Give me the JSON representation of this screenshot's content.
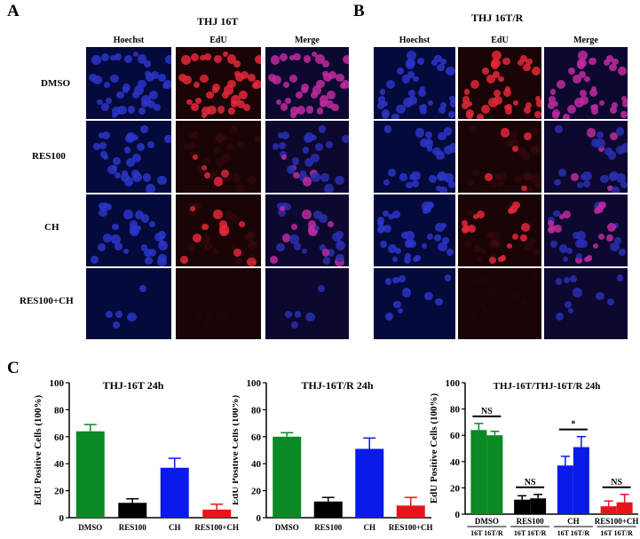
{
  "panels": {
    "a": {
      "letter": "A",
      "title": "THJ 16T",
      "columns": [
        "Hoechst",
        "EdU",
        "Merge"
      ],
      "rows": [
        "DMSO",
        "RES100",
        "CH",
        "RES100+CH"
      ]
    },
    "b": {
      "letter": "B",
      "title": "THJ 16T/R",
      "columns": [
        "Hoechst",
        "EdU",
        "Merge"
      ]
    },
    "c": {
      "letter": "C"
    }
  },
  "colors": {
    "green": "#0a8a24",
    "black": "#000000",
    "blue": "#0a1ae8",
    "red": "#e8141c",
    "nucleus": "#2c35c8",
    "edu": "#e4283a",
    "merge": "#c02c9c"
  },
  "chart_data": [
    {
      "type": "bar",
      "title": "THJ-16T 24h",
      "ylabel": "EdU Positive Cells (100%)",
      "ylim": [
        0,
        100
      ],
      "yticks": [
        "0",
        "20",
        "40",
        "60",
        "80",
        "100"
      ],
      "categories": [
        "DMSO",
        "RES100",
        "CH",
        "RES100+CH"
      ],
      "values": [
        64,
        11,
        37,
        6
      ],
      "errors": [
        5,
        3,
        7,
        4
      ],
      "bar_colors": [
        "green",
        "black",
        "blue",
        "red"
      ]
    },
    {
      "type": "bar",
      "title": "THJ-16T/R 24h",
      "ylabel": "EdU Positive Cells (100%)",
      "ylim": [
        0,
        100
      ],
      "yticks": [
        "0",
        "20",
        "40",
        "60",
        "80",
        "100"
      ],
      "categories": [
        "DMSO",
        "RES100",
        "CH",
        "RES100+CH"
      ],
      "values": [
        60,
        12,
        51,
        9
      ],
      "errors": [
        3,
        3,
        8,
        6
      ],
      "bar_colors": [
        "green",
        "black",
        "blue",
        "red"
      ]
    },
    {
      "type": "bar",
      "title": "THJ-16T/THJ-16T/R 24h",
      "ylabel": "EdU Positive Cells (100%)",
      "ylim": [
        0,
        100
      ],
      "yticks": [
        "0",
        "20",
        "40",
        "60",
        "80",
        "100"
      ],
      "categories": [
        "DMSO",
        "RES100",
        "CH",
        "RES100+CH"
      ],
      "group_sublabels": [
        "16T 16T/R",
        "16T 16T/R",
        "16T 16T/R",
        "16T 16T/R"
      ],
      "series": [
        {
          "name": "16T",
          "values": [
            64,
            11,
            37,
            6
          ],
          "errors": [
            5,
            3,
            7,
            4
          ]
        },
        {
          "name": "16T/R",
          "values": [
            60,
            12,
            51,
            9
          ],
          "errors": [
            3,
            3,
            8,
            6
          ]
        }
      ],
      "bar_colors": [
        "green",
        "black",
        "blue",
        "red"
      ],
      "significance": [
        "NS",
        "NS",
        "*",
        "NS"
      ]
    }
  ]
}
